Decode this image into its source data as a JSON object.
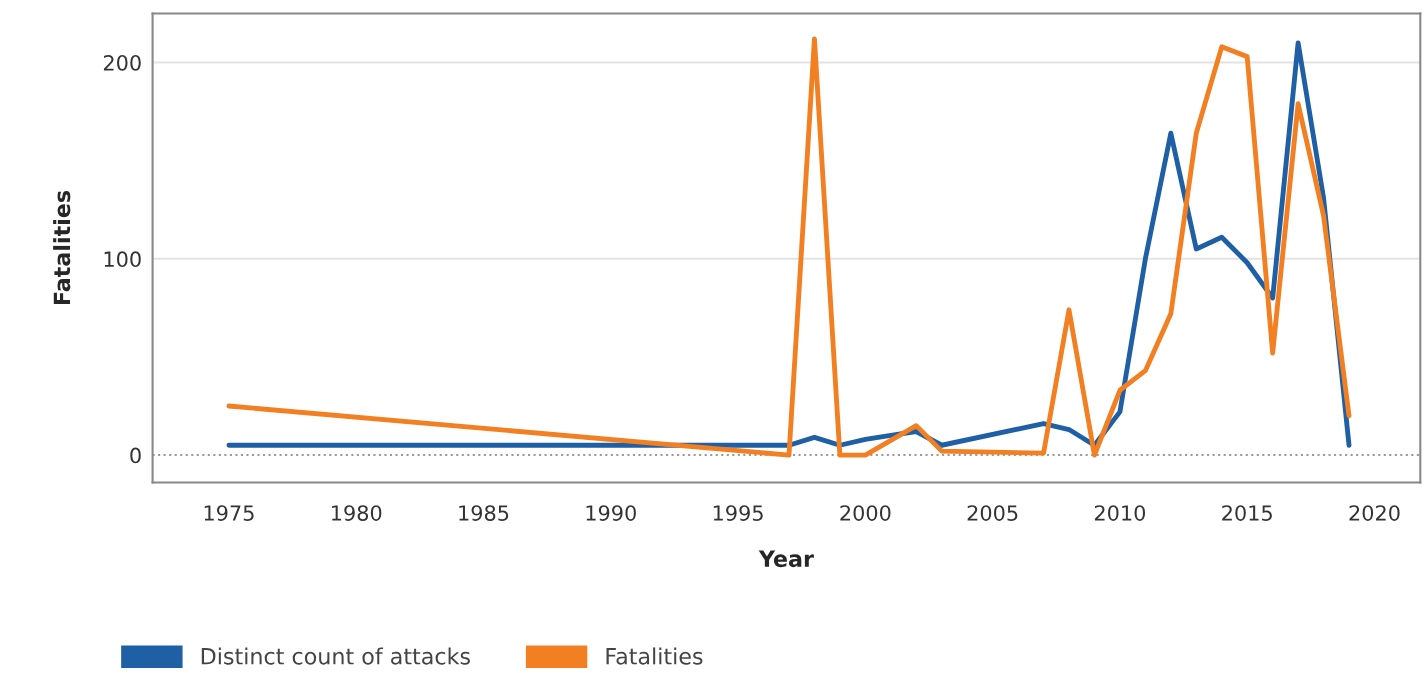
{
  "chart_data": {
    "type": "line",
    "xlabel": "Year",
    "ylabel": "Fatalities",
    "series": [
      {
        "name": "Distinct count of attacks",
        "color": "#1f5fa5",
        "x": [
          1975,
          1997,
          1998,
          1999,
          2000,
          2001,
          2002,
          2003,
          2007,
          2008,
          2009,
          2010,
          2011,
          2012,
          2013,
          2014,
          2015,
          2016,
          2017,
          2018,
          2019
        ],
        "values": [
          5,
          5,
          9,
          5,
          8,
          10,
          12,
          5,
          16,
          13,
          5,
          22,
          100,
          164,
          105,
          111,
          98,
          80,
          210,
          131,
          5
        ]
      },
      {
        "name": "Fatalities",
        "color": "#f28022",
        "x": [
          1975,
          1997,
          1998,
          1999,
          2000,
          2002,
          2003,
          2007,
          2008,
          2009,
          2010,
          2011,
          2012,
          2013,
          2014,
          2015,
          2016,
          2017,
          2018,
          2019
        ],
        "values": [
          25,
          0,
          212,
          0,
          0,
          15,
          2,
          1,
          74,
          0,
          33,
          43,
          72,
          164,
          208,
          203,
          52,
          179,
          122,
          20
        ]
      }
    ],
    "xlim": [
      1972,
      2021.8
    ],
    "xticks": [
      1975,
      1980,
      1985,
      1990,
      1995,
      2000,
      2005,
      2010,
      2015,
      2020
    ],
    "ylim": [
      -14,
      225
    ],
    "yticks": [
      0,
      100,
      200
    ],
    "ref_lines": [
      {
        "axis": "y",
        "value": 0,
        "color": "#999999",
        "line_style": "dotted"
      }
    ],
    "grid": "y",
    "legend": "bottom left",
    "line_style": "solid",
    "marker": "none"
  }
}
